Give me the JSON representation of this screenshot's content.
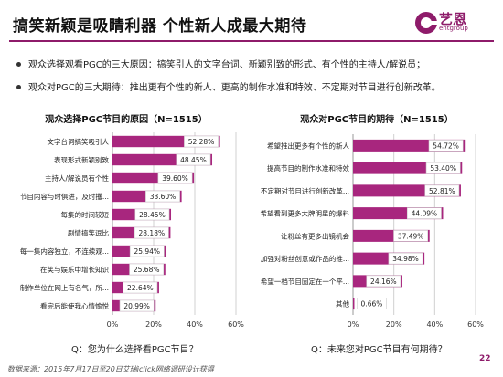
{
  "page": {
    "title": "搞笑新颖是吸睛利器  个性新人成最大期待",
    "logo_text": "艺恩",
    "logo_sub": "entgroup",
    "bullets": [
      "观众选择观看PGC的三大原因：搞笑引人的文字台词、新颖别致的形式、有个性的主持人/解说员；",
      "观众对PGC的三大期待：推出更有个性的新人、更高的制作水准和特效、不定期对节目进行创新改革。"
    ],
    "question_left": "Q：您为什么选择看PGC节目？",
    "question_right": "Q：未来您对PGC节目有何期待？",
    "source": "数据来源：2015年7月17日至20日艾瑞iclick网络调研设计获得",
    "page_number": "22",
    "colors": {
      "bar": "#a8267e",
      "accent": "#8e1b6a",
      "grid": "#d0d0d0",
      "label_bg": "#ffffff"
    }
  },
  "chart_data": [
    {
      "type": "bar",
      "orientation": "horizontal",
      "title": "观众选择PGC节目的原因（N=1515）",
      "categories": [
        "文字台词搞笑吸引人",
        "表现形式新颖别致",
        "主持人/解说员有个性",
        "节目内容与时俱进，及时攫...",
        "每集的时间较短",
        "剧情搞笑逗比",
        "每一集内容独立，不连续观...",
        "在笑与娱乐中增长知识",
        "制作单位在网上有名气，所...",
        "看完后能使我心情愉悦"
      ],
      "values": [
        52.28,
        48.45,
        39.6,
        33.6,
        28.45,
        28.18,
        25.94,
        25.68,
        22.64,
        20.99
      ],
      "value_labels": [
        "52.28%",
        "48.45%",
        "39.60%",
        "33.60%",
        "28.45%",
        "28.18%",
        "25.94%",
        "25.68%",
        "22.64%",
        "20.99%"
      ],
      "xlim": [
        0,
        60
      ],
      "xticks": [
        "0%",
        "20%",
        "40%",
        "60%"
      ],
      "grid": true
    },
    {
      "type": "bar",
      "orientation": "horizontal",
      "title": "观众对PGC节目的期待（N=1515）",
      "categories": [
        "希望推出更多有个性的新人",
        "提高节目的制作水准和特效",
        "不定期对节目进行创新改革...",
        "希望看到更多大牌明星的爆料",
        "让粉丝有更多出镜机会",
        "加强对粉丝创意或作品的推...",
        "希望一档节目固定在一个平...",
        "其他"
      ],
      "values": [
        54.72,
        53.4,
        52.81,
        44.09,
        37.49,
        34.98,
        24.16,
        0.66
      ],
      "value_labels": [
        "54.72%",
        "53.40%",
        "52.81%",
        "44.09%",
        "37.49%",
        "34.98%",
        "24.16%",
        "0.66%"
      ],
      "xlim": [
        0,
        60
      ],
      "xticks": [
        "0%",
        "20%",
        "40%",
        "60%"
      ],
      "grid": true
    }
  ]
}
